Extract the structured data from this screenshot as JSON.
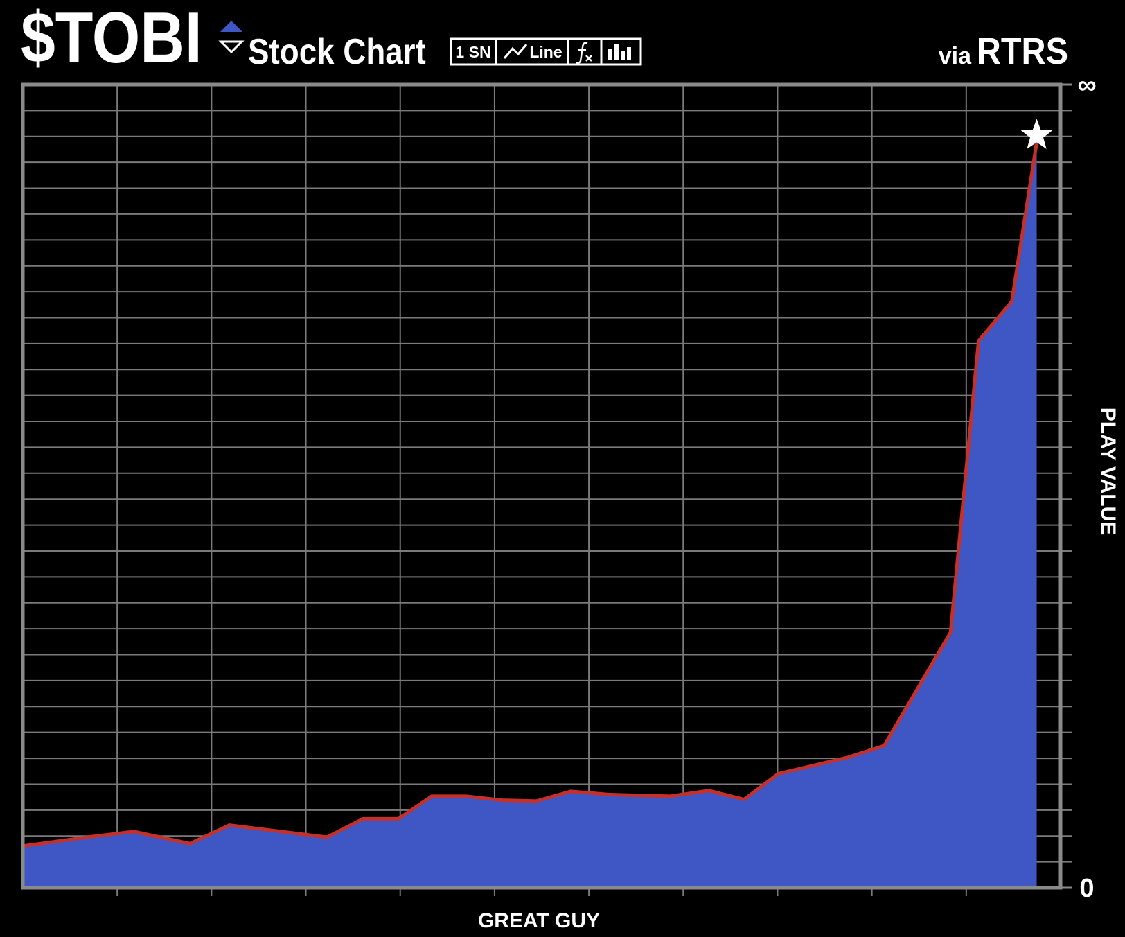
{
  "toolbar": [
    "1 SN",
    "Line"
  ],
  "chart_data": {
    "type": "area",
    "title": "$TOBI",
    "subtitle": "Stock Chart",
    "source_prefix": "via",
    "source": "RTRS",
    "x_label": "GREAT GUY",
    "y_label": "PLAY VALUE",
    "x": [
      0,
      6.8,
      10.7,
      16.1,
      19.9,
      29.3,
      32.8,
      36.2,
      39.4,
      42.7,
      46.2,
      49.5,
      52.8,
      56.6,
      62.4,
      66.1,
      69.5,
      72.8,
      79.4,
      83.0,
      89.4,
      92.1,
      95.3,
      97.7
    ],
    "series": [
      {
        "color": "#c4302c",
        "fill": "#3f57c4",
        "values": [
          5.2,
          6.4,
          7.0,
          5.5,
          7.8,
          6.3,
          8.6,
          8.6,
          11.4,
          11.4,
          10.9,
          10.8,
          12.0,
          11.6,
          11.4,
          12.1,
          11.0,
          14.2,
          16.2,
          17.7,
          31.8,
          68.1,
          73.0,
          92.8
        ]
      }
    ],
    "xlim": [
      0,
      100
    ],
    "ylim": [
      0,
      100
    ],
    "yticks": [
      0,
      {
        "value": 100,
        "label": "∞"
      }
    ],
    "grid": true,
    "peak_marker": "star"
  }
}
